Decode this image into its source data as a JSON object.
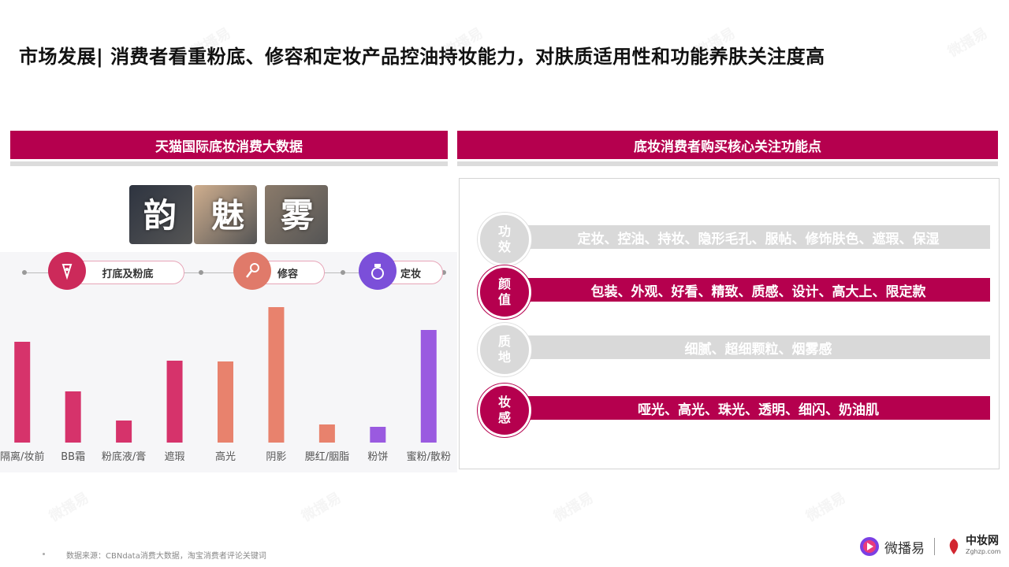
{
  "page": {
    "title": "市场发展| 消费者看重粉底、修容和定妆产品控油持妆能力，对肤质适用性和功能养肤关注度高",
    "source_note": "数据来源：CBNdata消费大数据，淘宝消费者评论关键词"
  },
  "left_section": {
    "header": "天猫国际底妆消费大数据",
    "thumbnails": [
      {
        "char": "韵",
        "color": "#2e3440"
      },
      {
        "char": "魅",
        "color": "#cfae8e"
      },
      {
        "char": "雾",
        "color": "#8a7a6a"
      }
    ],
    "categories": [
      {
        "label": "打底及粉底",
        "icon": "foundation-bottle-icon",
        "color": "#cc2a5a"
      },
      {
        "label": "修容",
        "icon": "contour-brush-icon",
        "color": "#e07a6a"
      },
      {
        "label": "定妆",
        "icon": "powder-compact-icon",
        "color": "#7b4fd9"
      }
    ]
  },
  "chart_data": {
    "type": "bar",
    "categories": [
      "隔离/妆前",
      "BB霜",
      "粉底液/膏",
      "遮瑕",
      "高光",
      "阴影",
      "腮红/胭脂",
      "粉饼",
      "蜜粉/散粉"
    ],
    "values": [
      128,
      65,
      28,
      104,
      103,
      172,
      23,
      20,
      143
    ],
    "colors": [
      "#d6336b",
      "#d6336b",
      "#d6336b",
      "#d6336b",
      "#e8826d",
      "#e8826d",
      "#e8826d",
      "#9a5ae0",
      "#9a5ae0"
    ],
    "ylim": [
      0,
      180
    ],
    "xlabel": "",
    "ylabel": "",
    "grid": false
  },
  "right_section": {
    "header": "底妆消费者购买核心关注功能点",
    "features": [
      {
        "label_top": "功",
        "label_bottom": "效",
        "text": "定妆、控油、持妆、隐形毛孔、服帖、修饰肤色、遮瑕、保湿",
        "style": "gray"
      },
      {
        "label_top": "颜",
        "label_bottom": "值",
        "text": "包装、外观、好看、精致、质感、设计、高大上、限定款",
        "style": "pink"
      },
      {
        "label_top": "质",
        "label_bottom": "地",
        "text": "细腻、超细颗粒、烟雾感",
        "style": "gray"
      },
      {
        "label_top": "妆",
        "label_bottom": "感",
        "text": "哑光、高光、珠光、透明、细闪、奶油肌",
        "style": "pink"
      }
    ]
  },
  "logos": {
    "weibo_label": "微播易",
    "zhongzhuang_label": "中妆网",
    "zhongzhuang_sub": "Zghzp.com"
  }
}
